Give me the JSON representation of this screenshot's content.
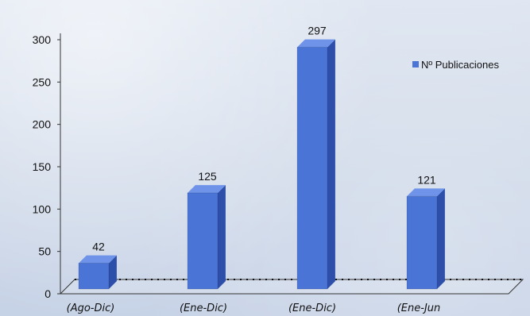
{
  "chart_data": {
    "type": "bar",
    "categories": [
      "(Ago-Dic)",
      "(Ene-Dic)",
      "(Ene-Dic)",
      "(Ene-Jun"
    ],
    "series": [
      {
        "name": "Nº Publicaciones",
        "values": [
          42,
          125,
          297,
          121
        ],
        "color": "#4a74d6"
      }
    ],
    "data_labels": [
      "42",
      "125",
      "297",
      "121"
    ],
    "yticks": [
      0,
      50,
      100,
      150,
      200,
      250,
      300
    ],
    "ylim": [
      0,
      300
    ],
    "grid": false,
    "legend": {
      "placement": "top-right",
      "label": "Nº Publicaciones"
    },
    "style": {
      "three_d": true
    }
  },
  "colors": {
    "bar_front": "#4a74d6",
    "bar_side": "#2d4ea9",
    "bar_top": "#6e93e8",
    "axis": "#333333"
  }
}
